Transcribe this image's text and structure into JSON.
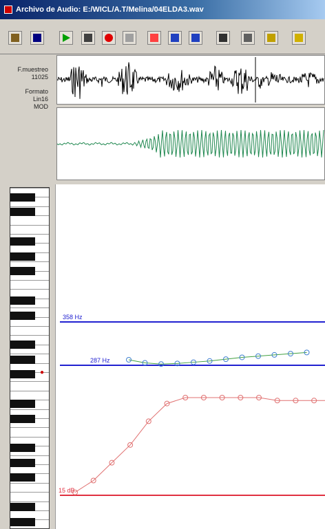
{
  "window": {
    "title": "Archivo de Audio: E:/WICL/A.T/Melina/04ELDA3.wav"
  },
  "toolbar": {
    "buttons": [
      {
        "name": "open-button",
        "icon": "open-folder-icon",
        "color": "#806020"
      },
      {
        "name": "save-button",
        "icon": "floppy-disk-icon",
        "color": "#000080"
      },
      {
        "name": "play-button",
        "icon": "play-icon",
        "color": "#00a000"
      },
      {
        "name": "microphone-button",
        "icon": "microphone-icon",
        "color": "#404040"
      },
      {
        "name": "record-button",
        "icon": "record-icon",
        "color": "#e00000"
      },
      {
        "name": "stop-button",
        "icon": "stop-icon",
        "color": "#a0a0a0"
      },
      {
        "name": "spectrogram-button",
        "icon": "spectrogram-icon",
        "color": "#ff4040"
      },
      {
        "name": "pitch-plot-button",
        "icon": "line-chart-icon",
        "color": "#2040c0"
      },
      {
        "name": "formant-button",
        "icon": "bars-icon",
        "color": "#2040c0"
      },
      {
        "name": "print-button",
        "icon": "printer-icon",
        "color": "#303030"
      },
      {
        "name": "settings-button",
        "icon": "grid-icon",
        "color": "#606060"
      },
      {
        "name": "edit-button",
        "icon": "pencil-icon",
        "color": "#c0a000"
      },
      {
        "name": "exit-button",
        "icon": "exit-door-icon",
        "color": "#d0b000"
      }
    ]
  },
  "side_info": {
    "sample_rate_label": "F.muestreo",
    "sample_rate_value": "11025",
    "format_label": "Formato",
    "format_bits": "Lin16",
    "format_mode": "MOD"
  },
  "pitch_plot": {
    "reference_lines": [
      {
        "label": "358 Hz",
        "color": "#2020d0"
      },
      {
        "label": "287 Hz",
        "color": "#2020d0"
      },
      {
        "label": "15 dB",
        "color": "#e03040"
      }
    ],
    "pitch_series": {
      "color": "#40a040",
      "marker_color": "#4080d0",
      "values": [
        296,
        291,
        289,
        290,
        292,
        294,
        297,
        300,
        302,
        304,
        306,
        308
      ]
    },
    "intensity_series": {
      "color": "#e07070",
      "values": [
        16,
        20,
        26,
        32,
        40,
        46,
        48,
        48,
        48,
        48,
        48,
        47,
        47,
        47,
        47
      ]
    }
  }
}
